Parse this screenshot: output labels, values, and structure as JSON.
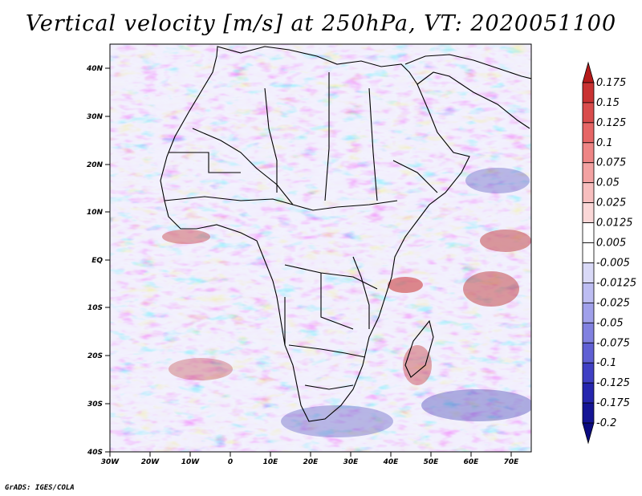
{
  "title": "Vertical velocity [m/s] at 250hPa, VT: 2020051100",
  "credit": "GrADS: IGES/COLA",
  "map": {
    "lon_range": [
      -30,
      75
    ],
    "lat_range": [
      -40,
      45
    ],
    "lat_ticks": [
      "40N",
      "30N",
      "20N",
      "10N",
      "EQ",
      "10S",
      "20S",
      "30S",
      "40S"
    ],
    "lon_ticks": [
      "30W",
      "20W",
      "10W",
      "0",
      "10E",
      "20E",
      "30E",
      "40E",
      "50E",
      "60E",
      "70E"
    ]
  },
  "colorbar": {
    "labels": [
      "0.175",
      "0.15",
      "0.125",
      "0.1",
      "0.075",
      "0.05",
      "0.025",
      "0.0125",
      "0.005",
      "-0.005",
      "-0.0125",
      "-0.025",
      "-0.05",
      "-0.075",
      "-0.1",
      "-0.125",
      "-0.175",
      "-0.2"
    ],
    "colors": [
      "#b51a1a",
      "#c93232",
      "#d94c4c",
      "#e66666",
      "#ee8585",
      "#f3a2a2",
      "#f7bebe",
      "#fad7d7",
      "#ffffff",
      "#ffffff",
      "#d9d9f7",
      "#bdbdf2",
      "#a0a0ea",
      "#8181e0",
      "#6060d4",
      "#4040c4",
      "#2626ae",
      "#151595",
      "#0b0b80"
    ]
  }
}
